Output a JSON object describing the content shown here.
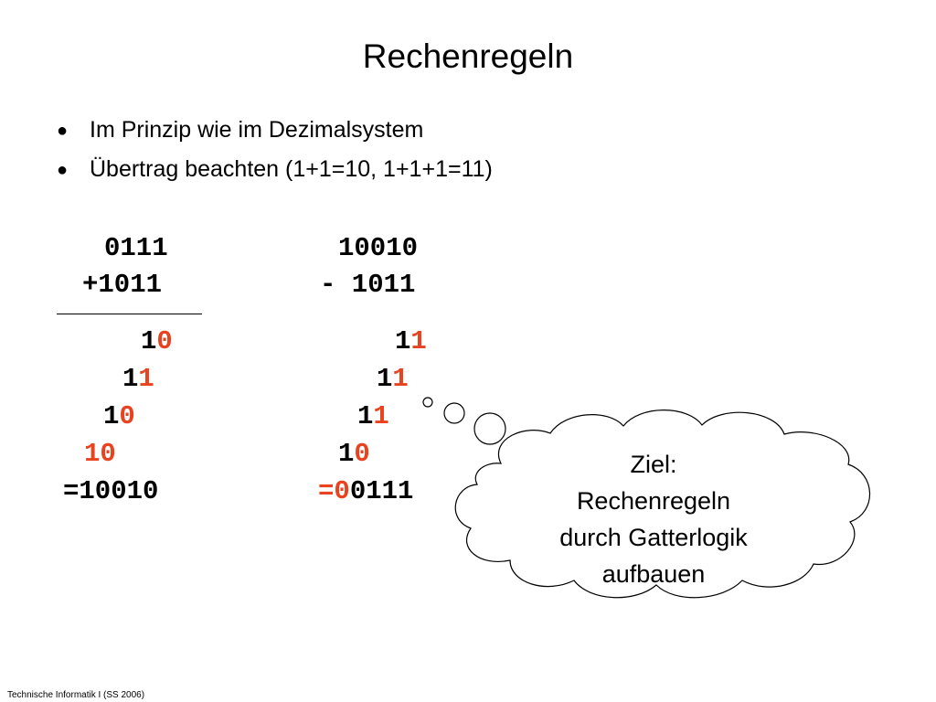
{
  "slide": {
    "title": "Rechenregeln",
    "bullets": [
      {
        "marker": "●",
        "text": "Im Prinzip wie im Dezimalsystem"
      },
      {
        "marker": "●",
        "text": "Übertrag beachten (1+1=10, 1+1+1=11)"
      }
    ],
    "footer": "Technische Informatik I (SS 2006)"
  },
  "addition": {
    "operand1": "0111",
    "operand2": "+1011",
    "steps": [
      {
        "black": "1",
        "red": "0"
      },
      {
        "black": "1",
        "red": "1"
      },
      {
        "black": "1",
        "red": "0"
      },
      {
        "black": "",
        "red": "10"
      }
    ],
    "result": "=10010"
  },
  "subtraction": {
    "operand1": "10010",
    "operand2": "- 1011",
    "steps": [
      {
        "black": "1",
        "red": "1"
      },
      {
        "black": "1",
        "red": "1"
      },
      {
        "black": "1",
        "red": "1"
      },
      {
        "black": "1",
        "red": "0"
      }
    ],
    "result_red": "=0",
    "result_black": "0111"
  },
  "thought_bubble": {
    "lines": [
      "Ziel:",
      "Rechenregeln",
      "durch Gatterlogik",
      "aufbauen"
    ]
  }
}
